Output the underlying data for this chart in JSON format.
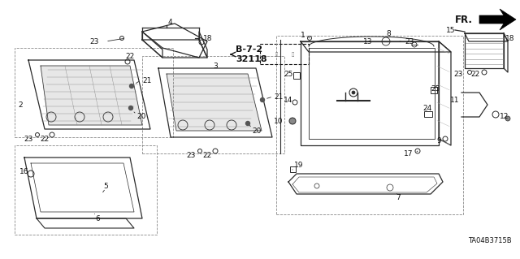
{
  "bg_color": "#ffffff",
  "diagram_code": "TA04B3715B",
  "line_color": "#2a2a2a",
  "gray_color": "#888888",
  "dark_color": "#111111",
  "fr_text": "FR.",
  "ref_top": "B-7-2",
  "ref_bot": "32118",
  "figsize": [
    6.4,
    3.19
  ],
  "dpi": 100
}
